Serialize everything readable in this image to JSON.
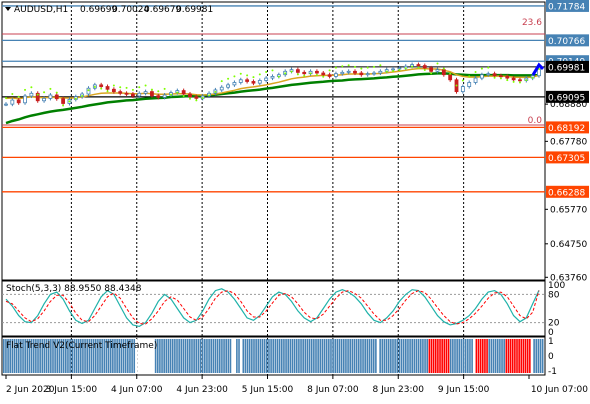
{
  "chart_data": {
    "type": "line",
    "title": "AUDUSD,H1",
    "ohlc": [
      "0.69699",
      "0.70024",
      "0.69679",
      "0.69981"
    ],
    "x_labels": [
      "2 Jun 2020",
      "3 Jun 15:00",
      "4 Jun 07:00",
      "4 Jun 23:00",
      "5 Jun 15:00",
      "8 Jun 07:00",
      "8 Jun 23:00",
      "9 Jun 15:00",
      "10 Jun 07:00"
    ],
    "price_axis": {
      "ylim": [
        0.6368,
        0.719
      ],
      "ticks": [
        "0.68880",
        "0.67780",
        "0.65770",
        "0.64750",
        "0.63760"
      ],
      "tick_values": [
        0.6888,
        0.6778,
        0.6577,
        0.6475,
        0.6376
      ]
    },
    "levels": [
      {
        "label": "0.71784",
        "value": 0.71784,
        "color": "#4682b4",
        "kind": "line"
      },
      {
        "label": "0.70766",
        "value": 0.70766,
        "color": "#4682b4",
        "kind": "line"
      },
      {
        "label": "0.70149",
        "value": 0.70149,
        "color": "#4682b4",
        "kind": "line"
      },
      {
        "label": "0.69981",
        "value": 0.69981,
        "color": "#000000",
        "kind": "current"
      },
      {
        "label": "0.69095",
        "value": 0.69095,
        "color": "#000000",
        "kind": "line"
      },
      {
        "label": "0.68192",
        "value": 0.68192,
        "color": "#ff4500",
        "kind": "line"
      },
      {
        "label": "0.67305",
        "value": 0.67305,
        "color": "#ff4500",
        "kind": "line"
      },
      {
        "label": "0.66288",
        "value": 0.66288,
        "color": "#ff4500",
        "kind": "line"
      }
    ],
    "fib_labels": [
      {
        "label": "23.6",
        "value": 0.7128
      },
      {
        "label": "0.0",
        "value": 0.6838
      }
    ],
    "fib_line_color": "#c84050",
    "price_series": [
      0.6888,
      0.69,
      0.6892,
      0.6912,
      0.692,
      0.6898,
      0.6905,
      0.6915,
      0.6904,
      0.689,
      0.6902,
      0.691,
      0.6918,
      0.6935,
      0.6945,
      0.694,
      0.6932,
      0.6925,
      0.692,
      0.6918,
      0.6912,
      0.692,
      0.6925,
      0.6913,
      0.6908,
      0.6915,
      0.6922,
      0.6928,
      0.6918,
      0.691,
      0.6905,
      0.6912,
      0.692,
      0.693,
      0.6938,
      0.6945,
      0.6952,
      0.696,
      0.6955,
      0.695,
      0.6958,
      0.6965,
      0.697,
      0.6975,
      0.6985,
      0.699,
      0.6982,
      0.6978,
      0.6985,
      0.698,
      0.6975,
      0.697,
      0.6978,
      0.6982,
      0.6985,
      0.698,
      0.6975,
      0.6978,
      0.698,
      0.6985,
      0.699,
      0.6992,
      0.6995,
      0.7,
      0.7005,
      0.7002,
      0.6995,
      0.6985,
      0.699,
      0.6975,
      0.696,
      0.6925,
      0.694,
      0.6952,
      0.6965,
      0.6975,
      0.6978,
      0.6972,
      0.697,
      0.6965,
      0.696,
      0.6958,
      0.6965,
      0.6972,
      0.6998
    ],
    "ma_fast": [
      0.6905,
      0.6906,
      0.6904,
      0.6907,
      0.691,
      0.6908,
      0.6907,
      0.6908,
      0.6908,
      0.6906,
      0.6906,
      0.6907,
      0.6909,
      0.6913,
      0.6917,
      0.692,
      0.6921,
      0.6921,
      0.6921,
      0.692,
      0.6919,
      0.6919,
      0.692,
      0.6919,
      0.6917,
      0.6917,
      0.6918,
      0.6919,
      0.6919,
      0.6918,
      0.6916,
      0.6915,
      0.6916,
      0.6918,
      0.6921,
      0.6925,
      0.6929,
      0.6934,
      0.6937,
      0.6939,
      0.6942,
      0.6945,
      0.6949,
      0.6953,
      0.6958,
      0.6963,
      0.6966,
      0.6968,
      0.6971,
      0.6972,
      0.6973,
      0.6973,
      0.6974,
      0.6975,
      0.6977,
      0.6977,
      0.6977,
      0.6977,
      0.6978,
      0.6979,
      0.6981,
      0.6983,
      0.6985,
      0.6988,
      0.6991,
      0.6993,
      0.6993,
      0.6992,
      0.6992,
      0.6988,
      0.6984,
      0.6975,
      0.697,
      0.6968,
      0.6968,
      0.6969,
      0.6971,
      0.6971,
      0.6971,
      0.697,
      0.6968,
      0.6967,
      0.6967,
      0.6968,
      0.6974
    ],
    "ma_slow": [
      0.6832,
      0.6838,
      0.6843,
      0.6849,
      0.6854,
      0.6858,
      0.6862,
      0.6866,
      0.6869,
      0.6871,
      0.6874,
      0.6877,
      0.688,
      0.6884,
      0.6887,
      0.689,
      0.6893,
      0.6895,
      0.6897,
      0.6899,
      0.69,
      0.6902,
      0.6904,
      0.6905,
      0.6906,
      0.6907,
      0.6909,
      0.691,
      0.6911,
      0.6912,
      0.6912,
      0.6913,
      0.6914,
      0.6916,
      0.6918,
      0.692,
      0.6922,
      0.6925,
      0.6927,
      0.6929,
      0.6931,
      0.6934,
      0.6936,
      0.6939,
      0.6942,
      0.6945,
      0.6947,
      0.6949,
      0.6951,
      0.6953,
      0.6954,
      0.6956,
      0.6957,
      0.6958,
      0.696,
      0.6961,
      0.6962,
      0.6963,
      0.6964,
      0.6966,
      0.6967,
      0.6969,
      0.697,
      0.6972,
      0.6974,
      0.6976,
      0.6977,
      0.6978,
      0.6979,
      0.6979,
      0.6978,
      0.6976,
      0.6975,
      0.6974,
      0.6974,
      0.6974,
      0.6974,
      0.6974,
      0.6974,
      0.6974,
      0.6973,
      0.6973,
      0.6973,
      0.6973,
      0.6974
    ],
    "stoch": {
      "label": "Stoch(5,3,3) 88.9550 88.4348",
      "ticks": [
        "100",
        "80",
        "20",
        "0"
      ],
      "tick_values": [
        100,
        80,
        20,
        0
      ],
      "main": [
        70,
        55,
        35,
        22,
        20,
        35,
        60,
        80,
        85,
        70,
        45,
        25,
        18,
        25,
        50,
        75,
        88,
        80,
        55,
        30,
        15,
        12,
        20,
        40,
        65,
        80,
        70,
        50,
        30,
        20,
        25,
        45,
        70,
        88,
        92,
        85,
        70,
        50,
        30,
        25,
        35,
        55,
        75,
        85,
        80,
        65,
        45,
        30,
        22,
        30,
        50,
        70,
        85,
        90,
        85,
        75,
        60,
        40,
        25,
        20,
        30,
        45,
        65,
        80,
        90,
        88,
        75,
        55,
        35,
        22,
        15,
        18,
        25,
        35,
        50,
        70,
        85,
        88,
        80,
        60,
        35,
        22,
        30,
        60,
        89
      ],
      "signal": [
        65,
        60,
        45,
        30,
        22,
        28,
        45,
        65,
        78,
        78,
        62,
        40,
        25,
        22,
        35,
        55,
        75,
        83,
        72,
        50,
        30,
        18,
        17,
        28,
        45,
        65,
        75,
        68,
        50,
        32,
        25,
        32,
        50,
        72,
        85,
        88,
        82,
        65,
        45,
        32,
        32,
        45,
        62,
        78,
        82,
        75,
        60,
        42,
        30,
        28,
        38,
        55,
        72,
        85,
        88,
        82,
        72,
        55,
        38,
        25,
        25,
        35,
        50,
        68,
        82,
        88,
        84,
        70,
        52,
        35,
        22,
        17,
        20,
        28,
        40,
        55,
        72,
        83,
        85,
        75,
        55,
        35,
        28,
        42,
        88
      ]
    },
    "flat_trend": {
      "label": "Flat Trend V2(Current Timeframe)",
      "ticks": [
        "1",
        "0",
        "-1"
      ],
      "tick_values": [
        1,
        0,
        -1
      ],
      "colors": {
        "up": "#4682b4",
        "down": "#ff0000",
        "flat": "#ffffff"
      },
      "states": "UUUUUUUUUUUUUUUUUUUUUUUUUUUUUUUUUUUUUUUUUUUUUUUUUUUUUUUUUUUUUUFFFFFFFFFUUUUUUUUUUUUUUUUUUUUUUUUUUUUUUUUUUUUFFUUFUUUUUUUUUUUUUUUUUUUUUUUUUUUUUUUUUUUUUUUUUUUUUUUUUUUUUUUUUUUUUUUFUUUUUUUUUUUUUUUUUUUUUUUDDDDDDDDDDUUUUUUUUUUUFDDDDDDUUUUUUUUDDDDDDDDDDDDFUUUUU"
    },
    "colors": {
      "price_line": "#c81e1e",
      "ma_fast": "#daa520",
      "ma_slow": "#008000",
      "psar": "#7fff00",
      "stoch_main": "#20b2aa",
      "stoch_signal": "#ff0000",
      "grid": "#000000",
      "arrow": "#0000ff"
    }
  }
}
